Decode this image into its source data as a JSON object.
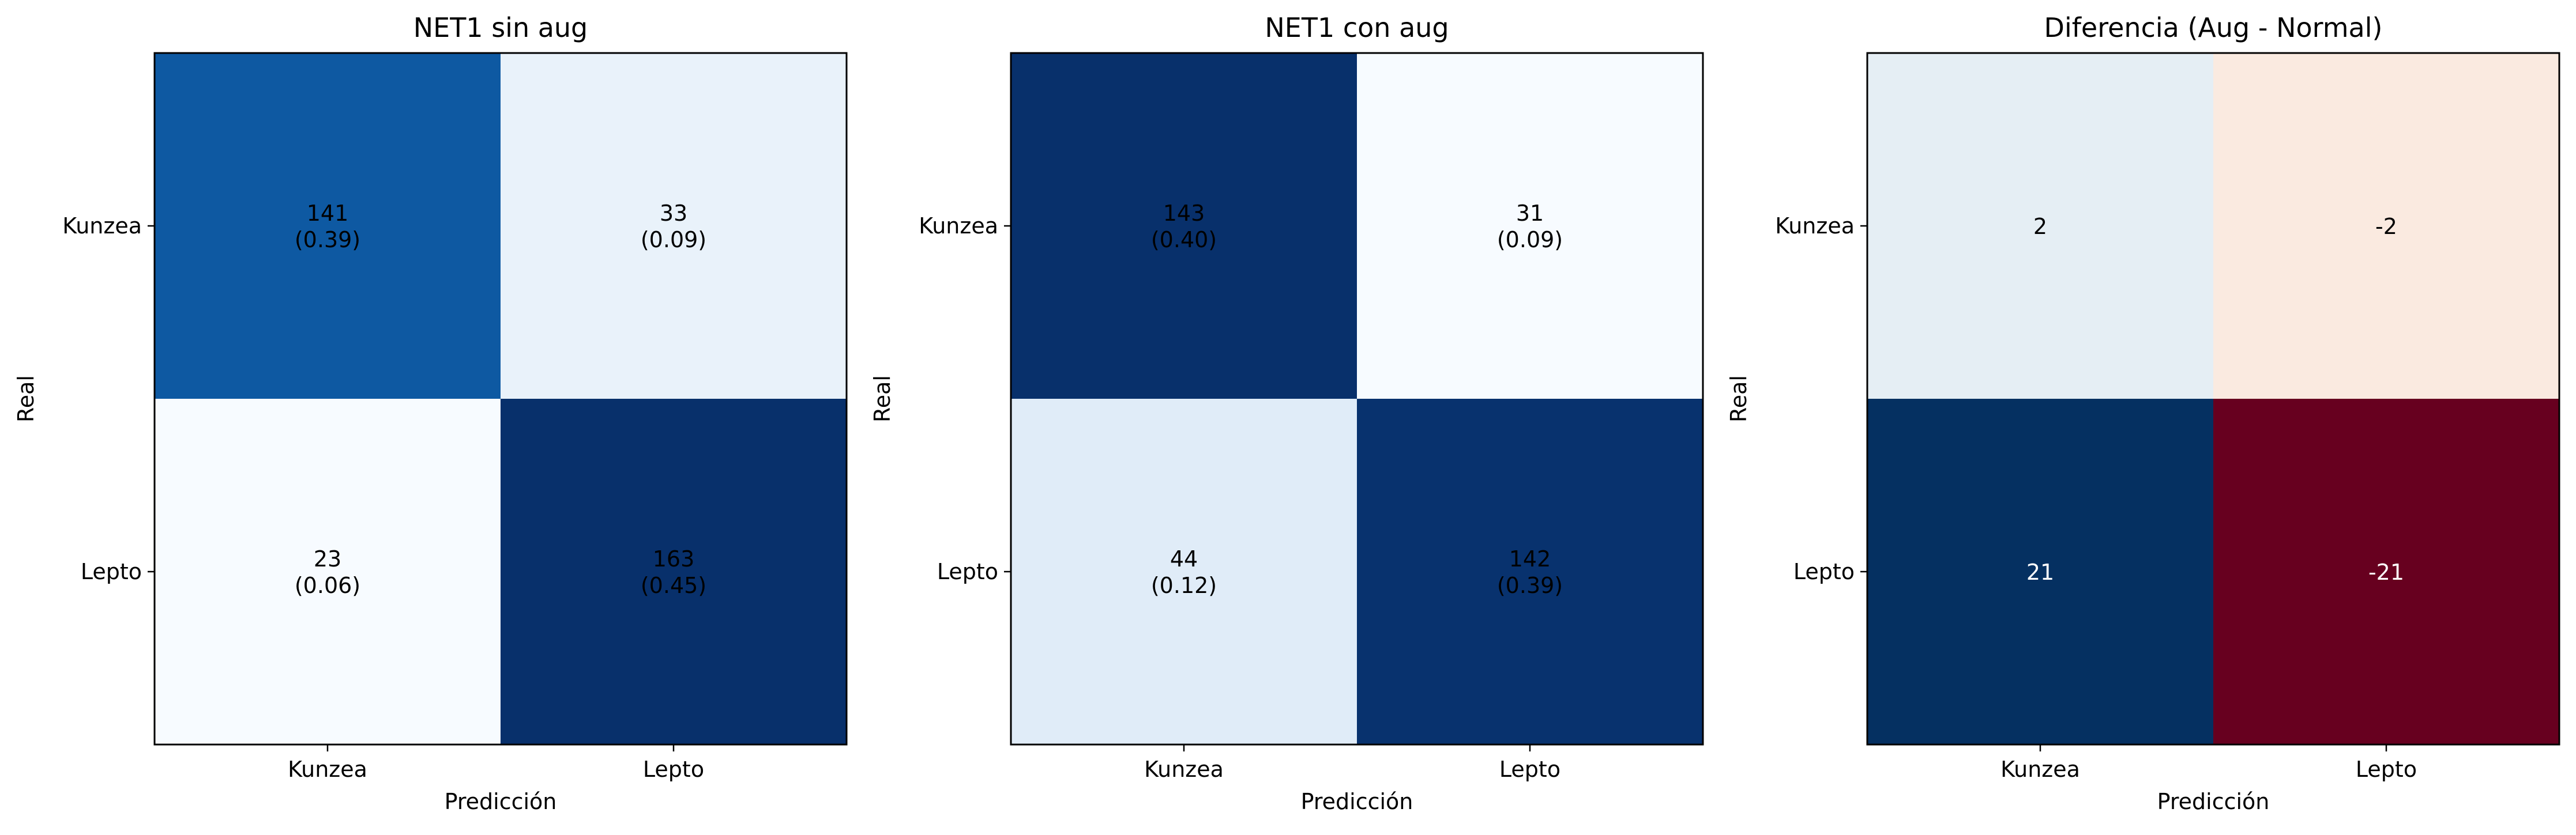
{
  "chart_data": [
    {
      "type": "heatmap",
      "title": "NET1 sin aug",
      "xlabel": "Predicción",
      "ylabel": "Real",
      "x_categories": [
        "Kunzea",
        "Lepto"
      ],
      "y_categories": [
        "Kunzea",
        "Lepto"
      ],
      "colormap": "Blues",
      "values": [
        [
          141,
          33
        ],
        [
          23,
          163
        ]
      ],
      "fractions": [
        [
          0.39,
          0.09
        ],
        [
          0.06,
          0.45
        ]
      ],
      "cell_labels": [
        [
          "141",
          "(0.39)"
        ],
        [
          "33",
          "(0.09)"
        ],
        [
          "23",
          "(0.06)"
        ],
        [
          "163",
          "(0.45)"
        ]
      ]
    },
    {
      "type": "heatmap",
      "title": "NET1 con aug",
      "xlabel": "Predicción",
      "ylabel": "Real",
      "x_categories": [
        "Kunzea",
        "Lepto"
      ],
      "y_categories": [
        "Kunzea",
        "Lepto"
      ],
      "colormap": "Blues",
      "values": [
        [
          143,
          31
        ],
        [
          44,
          142
        ]
      ],
      "fractions": [
        [
          0.4,
          0.09
        ],
        [
          0.12,
          0.39
        ]
      ],
      "cell_labels": [
        [
          "143",
          "(0.40)"
        ],
        [
          "31",
          "(0.09)"
        ],
        [
          "44",
          "(0.12)"
        ],
        [
          "142",
          "(0.39)"
        ]
      ]
    },
    {
      "type": "heatmap",
      "title": "Diferencia (Aug - Normal)",
      "xlabel": "Predicción",
      "ylabel": "Real",
      "x_categories": [
        "Kunzea",
        "Lepto"
      ],
      "y_categories": [
        "Kunzea",
        "Lepto"
      ],
      "colormap": "RdBu",
      "values": [
        [
          2,
          -2
        ],
        [
          21,
          -21
        ]
      ],
      "cell_labels": [
        [
          "2"
        ],
        [
          "-2"
        ],
        [
          "21"
        ],
        [
          "-21"
        ]
      ]
    }
  ]
}
